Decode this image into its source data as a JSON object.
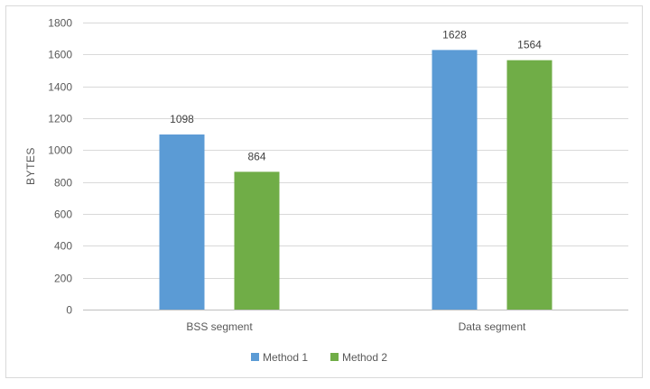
{
  "chart_data": {
    "type": "bar",
    "title": "",
    "xlabel": "",
    "ylabel": "BYTES",
    "ylim": [
      0,
      1800
    ],
    "yticks": [
      0,
      200,
      400,
      600,
      800,
      1000,
      1200,
      1400,
      1600,
      1800
    ],
    "categories": [
      "BSS segment",
      "Data segment"
    ],
    "series": [
      {
        "name": "Method 1",
        "color": "#5b9bd5",
        "values": [
          1098,
          1628
        ]
      },
      {
        "name": "Method 2",
        "color": "#70ad47",
        "values": [
          864,
          1564
        ]
      }
    ],
    "grid": true,
    "legend": "bottom"
  }
}
